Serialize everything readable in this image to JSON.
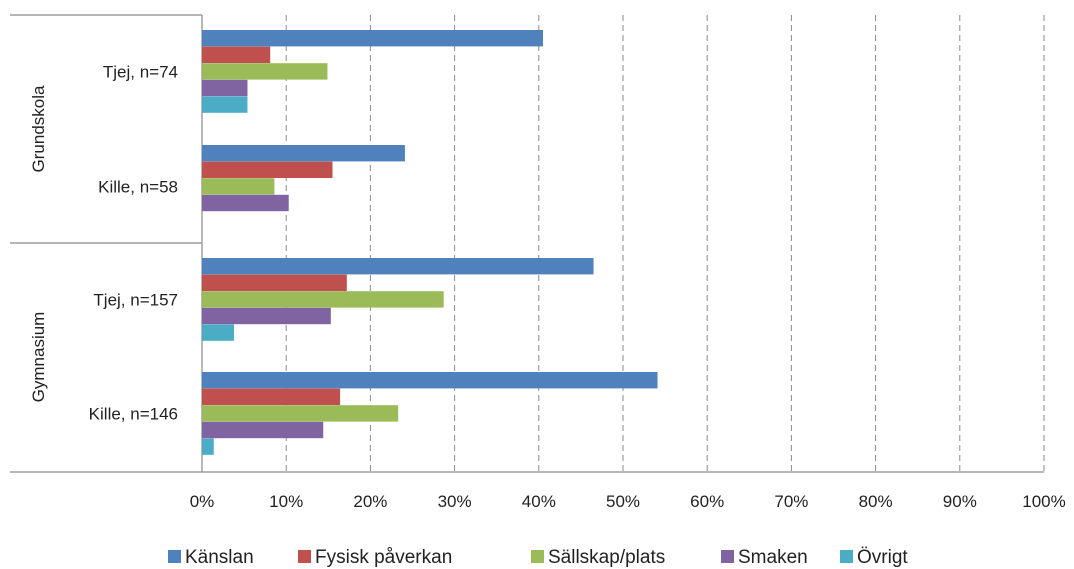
{
  "chart_data": {
    "type": "bar",
    "orientation": "horizontal",
    "groups": [
      {
        "name": "Grundskola",
        "categories": [
          "Tjej, n=74",
          "Kille, n=58"
        ]
      },
      {
        "name": "Gymnasium",
        "categories": [
          "Tjej, n=157",
          "Kille, n=146"
        ]
      }
    ],
    "categories": [
      "Tjej, n=74",
      "Kille, n=58",
      "Tjej, n=157",
      "Kille, n=146"
    ],
    "series": [
      {
        "name": "Känslan",
        "color": "#4F81BD",
        "values": [
          40.5,
          24.1,
          46.5,
          54.1
        ]
      },
      {
        "name": "Fysisk påverkan",
        "color": "#C0504D",
        "values": [
          8.1,
          15.5,
          17.2,
          16.4
        ]
      },
      {
        "name": "Sällskap/plats",
        "color": "#9BBB59",
        "values": [
          14.9,
          8.6,
          28.7,
          23.3
        ]
      },
      {
        "name": "Smaken",
        "color": "#8064A2",
        "values": [
          5.4,
          10.3,
          15.3,
          14.4
        ]
      },
      {
        "name": "Övrigt",
        "color": "#4BACC6",
        "values": [
          5.4,
          0,
          3.8,
          1.4
        ]
      }
    ],
    "xlim": [
      0,
      100
    ],
    "x_ticks": [
      "0%",
      "10%",
      "20%",
      "30%",
      "40%",
      "50%",
      "60%",
      "70%",
      "80%",
      "90%",
      "100%"
    ],
    "grid": "vertical dashed",
    "legend_position": "bottom"
  }
}
